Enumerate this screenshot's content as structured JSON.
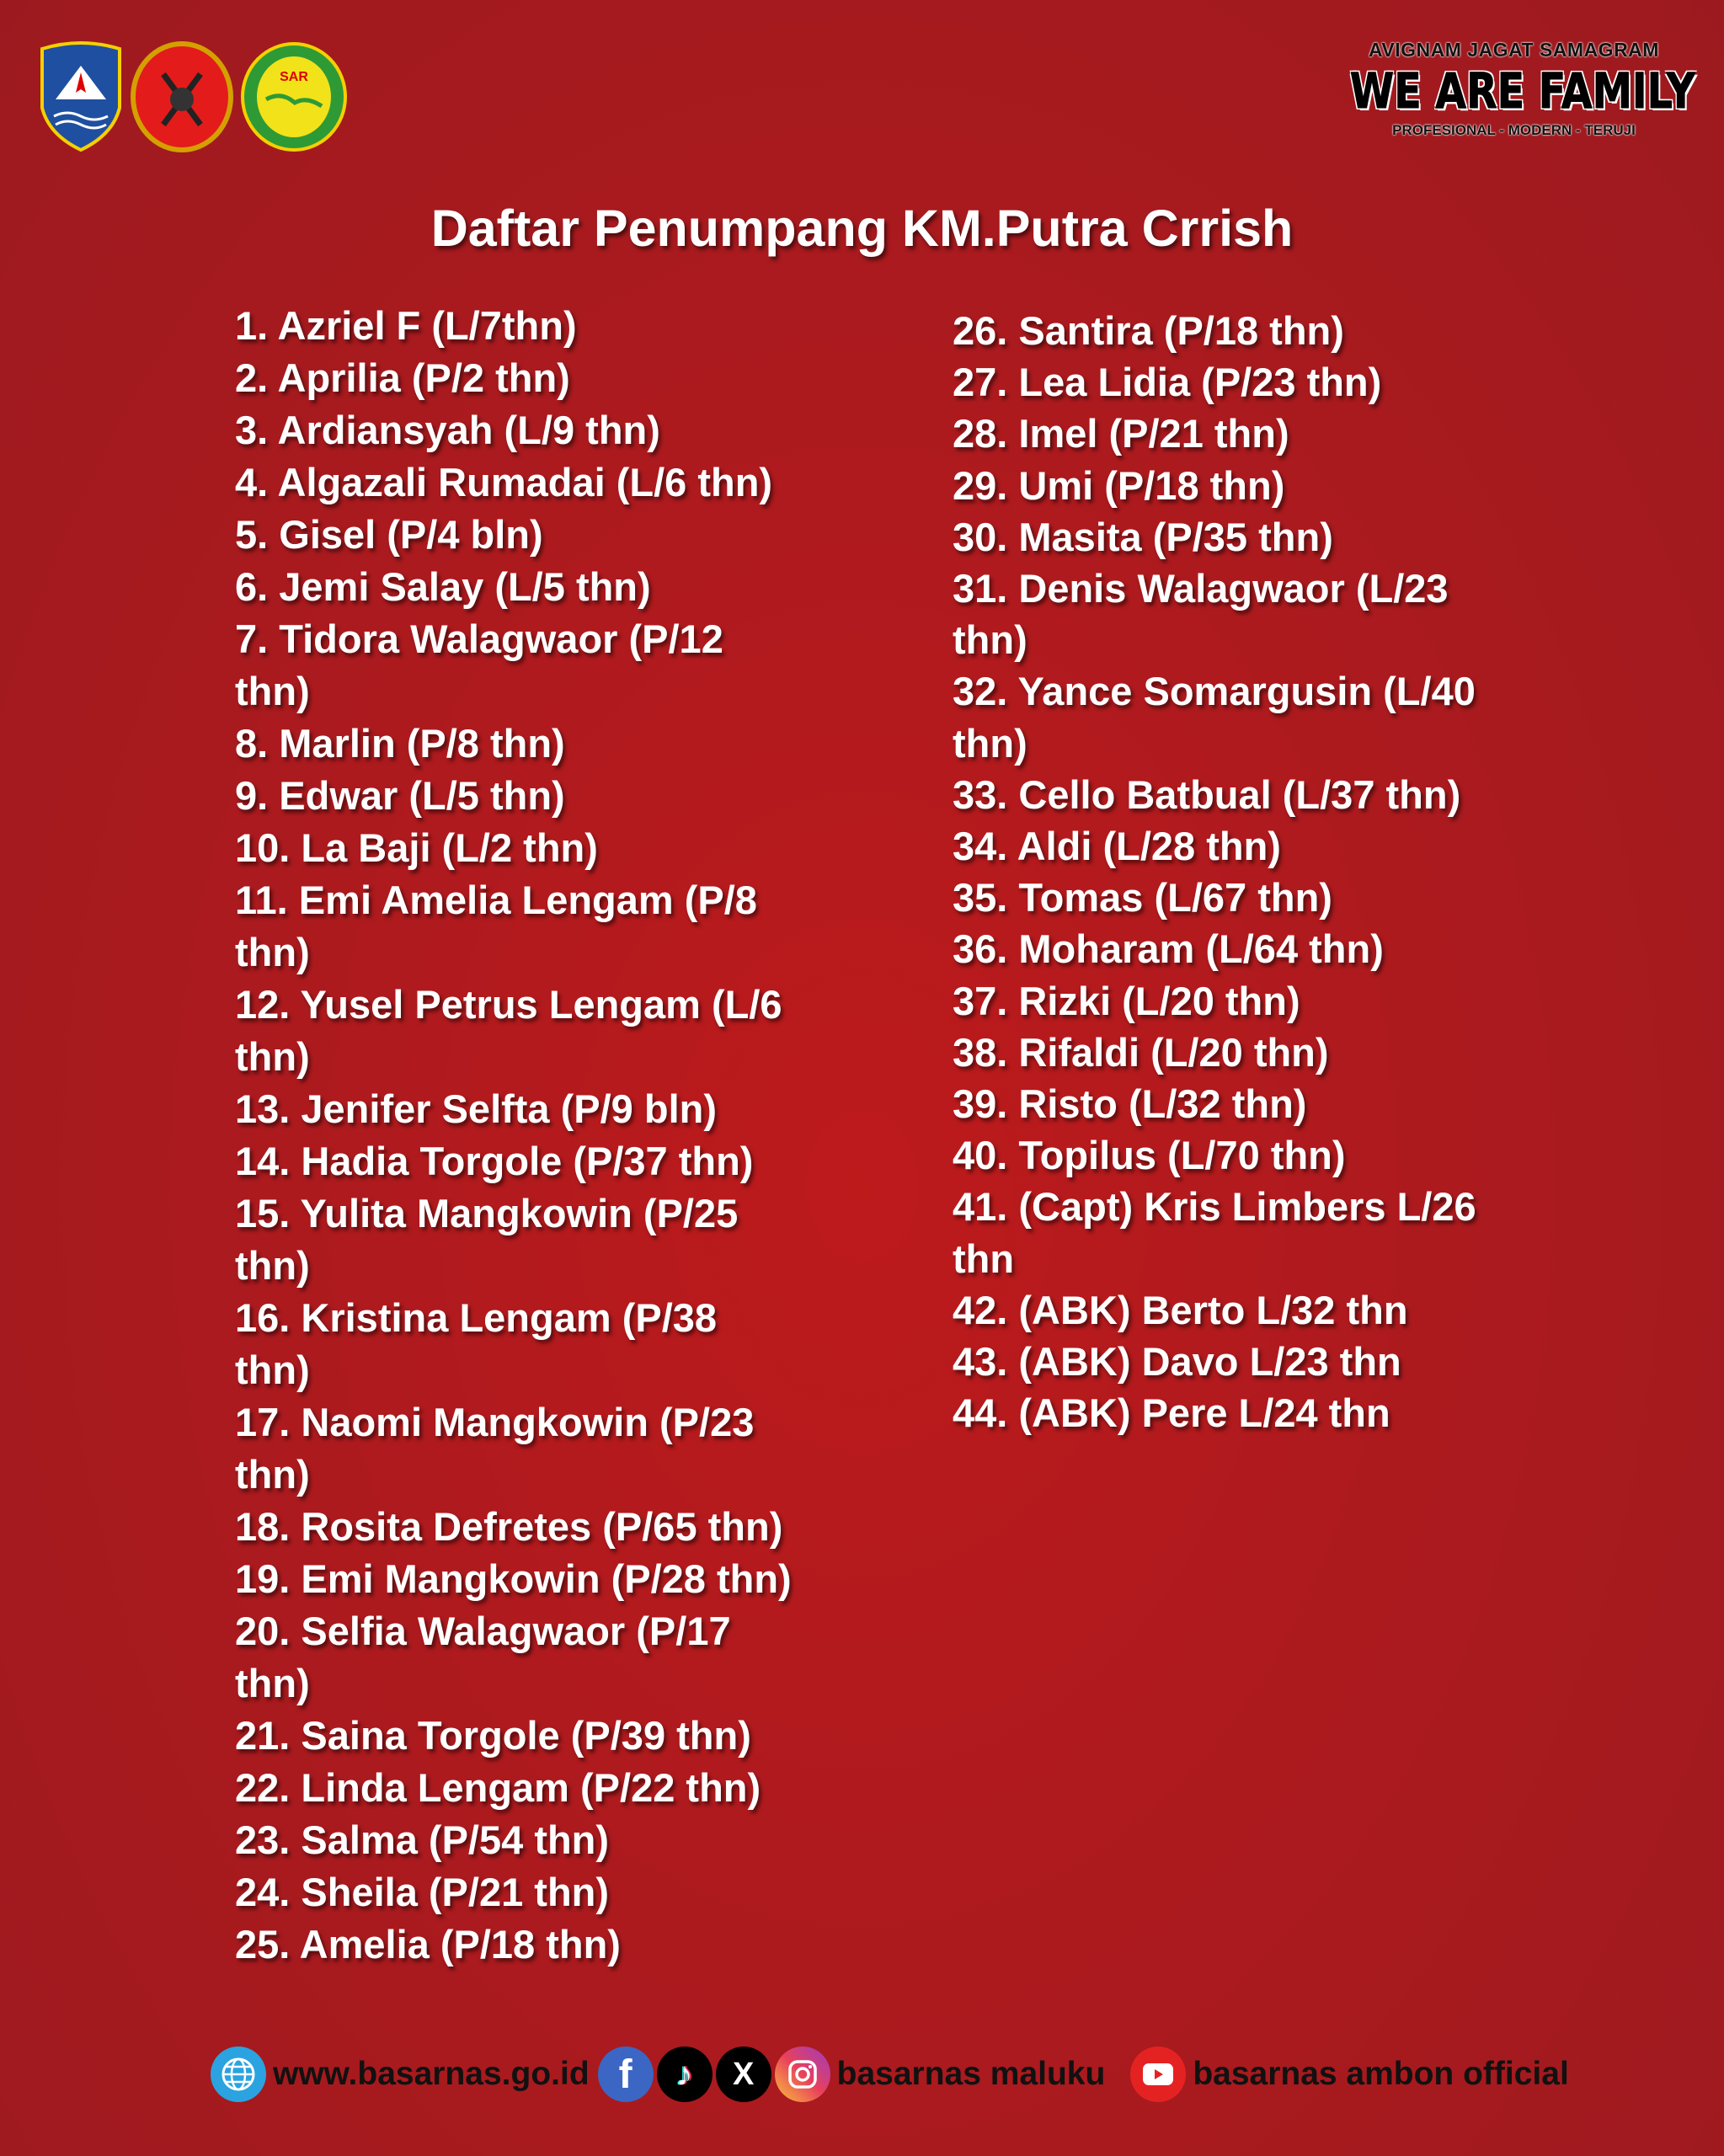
{
  "header": {
    "logos": [
      "BASARNAS",
      "SAR NASIONAL",
      "AVIGNAM JAGAT SAMAGRAM"
    ],
    "motto_top": "AVIGNAM JAGAT SAMAGRAM",
    "motto_main": "WE ARE FAMILY",
    "motto_sub": "PROFESIONAL - MODERN - TERUJI"
  },
  "title": "Daftar Penumpang KM.Putra Crrish",
  "left_list": [
    [
      "1. Azriel F  (L/7thn)"
    ],
    [
      "2. Aprilia  (P/2 thn)"
    ],
    [
      "3. Ardiansyah (L/9 thn)"
    ],
    [
      "4. Algazali Rumadai (L/6 thn)"
    ],
    [
      "5. Gisel (P/4 bln)"
    ],
    [
      "6. Jemi Salay (L/5 thn)"
    ],
    [
      "7. Tidora Walagwaor (P/12",
      "thn)"
    ],
    [
      "8. Marlin (P/8 thn)"
    ],
    [
      "9. Edwar (L/5 thn)"
    ],
    [
      "10. La Baji (L/2 thn)"
    ],
    [
      "11. Emi Amelia Lengam (P/8",
      "thn)"
    ],
    [
      "12. Yusel Petrus Lengam (L/6",
      "thn)"
    ],
    [
      "13. Jenifer Selfta (P/9 bln)"
    ],
    [
      "14. Hadia Torgole (P/37 thn)"
    ],
    [
      "15. Yulita Mangkowin (P/25",
      "thn)"
    ],
    [
      "16. Kristina Lengam (P/38",
      "thn)"
    ],
    [
      "17. Naomi Mangkowin (P/23",
      "thn)"
    ],
    [
      "18. Rosita Defretes (P/65 thn)"
    ],
    [
      "19. Emi Mangkowin (P/28 thn)"
    ],
    [
      "20. Selfia Walagwaor (P/17",
      "thn)"
    ],
    [
      "21. Saina Torgole (P/39 thn)"
    ],
    [
      "22. Linda Lengam (P/22 thn)"
    ],
    [
      "23. Salma (P/54 thn)"
    ],
    [
      "24. Sheila (P/21 thn)"
    ],
    [
      "25. Amelia (P/18 thn)"
    ]
  ],
  "right_list": [
    [
      "26. Santira (P/18 thn)"
    ],
    [
      "27. Lea Lidia (P/23 thn)"
    ],
    [
      "28. Imel (P/21 thn)"
    ],
    [
      "29. Umi (P/18 thn)"
    ],
    [
      "30. Masita (P/35 thn)"
    ],
    [
      "31. Denis Walagwaor (L/23",
      "thn)"
    ],
    [
      "32. Yance Somargusin (L/40",
      "thn)"
    ],
    [
      "33. Cello Batbual (L/37 thn)"
    ],
    [
      "34. Aldi (L/28 thn)"
    ],
    [
      "35. Tomas (L/67 thn)"
    ],
    [
      "36. Moharam (L/64 thn)"
    ],
    [
      "37. Rizki (L/20 thn)"
    ],
    [
      "38. Rifaldi (L/20 thn)"
    ],
    [
      "39. Risto (L/32 thn)"
    ],
    [
      "40. Topilus (L/70 thn)"
    ],
    [
      "41. (Capt) Kris Limbers L/26",
      "thn"
    ],
    [
      "42. (ABK) Berto L/32 thn"
    ],
    [
      "43. (ABK) Davo L/23 thn"
    ],
    [
      "44. (ABK) Pere L/24 thn"
    ]
  ],
  "footer": {
    "website": "www.basarnas.go.id",
    "social_handle": "basarnas maluku",
    "youtube": "basarnas ambon official",
    "icons": [
      "globe-icon",
      "facebook-icon",
      "tiktok-icon",
      "x-icon",
      "instagram-icon",
      "youtube-icon"
    ]
  },
  "colors": {
    "background": "#ad1a1e",
    "text": "#ffffff"
  }
}
